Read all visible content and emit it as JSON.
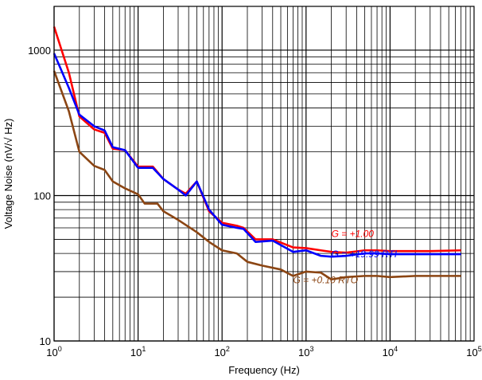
{
  "chart_data": {
    "type": "line",
    "title": "",
    "xlabel": "Frequency (Hz)",
    "ylabel": "Voltage Noise (nV/√ Hz)",
    "x_scale": "log",
    "y_scale": "log",
    "xlim": [
      1,
      100000
    ],
    "ylim": [
      10,
      2000
    ],
    "grid": true,
    "x_ticks": [
      {
        "value": 1,
        "base": "10",
        "exp": "0"
      },
      {
        "value": 10,
        "base": "10",
        "exp": "1"
      },
      {
        "value": 100,
        "base": "10",
        "exp": "2"
      },
      {
        "value": 1000,
        "base": "10",
        "exp": "3"
      },
      {
        "value": 10000,
        "base": "10",
        "exp": "4"
      },
      {
        "value": 100000,
        "base": "10",
        "exp": "5"
      }
    ],
    "y_ticks": [
      {
        "value": 10,
        "label": "10"
      },
      {
        "value": 100,
        "label": "100"
      },
      {
        "value": 1000,
        "label": "1000"
      }
    ],
    "series": [
      {
        "name": "G = +1.00",
        "color": "#ff0000",
        "label_at": [
          2000,
          52
        ],
        "points": [
          [
            1,
            1450
          ],
          [
            1.5,
            700
          ],
          [
            2,
            350
          ],
          [
            3,
            285
          ],
          [
            4,
            270
          ],
          [
            5,
            210
          ],
          [
            7,
            205
          ],
          [
            10,
            158
          ],
          [
            15,
            158
          ],
          [
            20,
            130
          ],
          [
            30,
            110
          ],
          [
            37,
            103
          ],
          [
            50,
            125
          ],
          [
            70,
            78
          ],
          [
            100,
            65
          ],
          [
            150,
            62
          ],
          [
            180,
            60
          ],
          [
            250,
            50
          ],
          [
            400,
            50
          ],
          [
            700,
            44
          ],
          [
            1000,
            43.5
          ],
          [
            1500,
            42
          ],
          [
            2000,
            41
          ],
          [
            3000,
            40.5
          ],
          [
            5000,
            42
          ],
          [
            7000,
            42
          ],
          [
            10000,
            41.5
          ],
          [
            20000,
            41.5
          ],
          [
            30000,
            41.5
          ],
          [
            70000,
            42
          ]
        ]
      },
      {
        "name": "G = +19.99 RTI",
        "color": "#0000ff",
        "label_at": [
          2000,
          37.5
        ],
        "points": [
          [
            1,
            950
          ],
          [
            1.5,
            550
          ],
          [
            2,
            360
          ],
          [
            3,
            300
          ],
          [
            4,
            280
          ],
          [
            5,
            215
          ],
          [
            7,
            205
          ],
          [
            10,
            155
          ],
          [
            15,
            155
          ],
          [
            20,
            130
          ],
          [
            30,
            110
          ],
          [
            37,
            100
          ],
          [
            50,
            125
          ],
          [
            70,
            80
          ],
          [
            100,
            63
          ],
          [
            150,
            60
          ],
          [
            180,
            59
          ],
          [
            250,
            48
          ],
          [
            400,
            49
          ],
          [
            700,
            41
          ],
          [
            1000,
            42
          ],
          [
            1500,
            38.5
          ],
          [
            2000,
            38
          ],
          [
            3000,
            38.5
          ],
          [
            5000,
            40
          ],
          [
            7000,
            40
          ],
          [
            10000,
            39.5
          ],
          [
            20000,
            39.5
          ],
          [
            30000,
            39.5
          ],
          [
            70000,
            39.5
          ]
        ]
      },
      {
        "name": "G = +0.10 RTO",
        "color": "#8b4513",
        "label_at": [
          700,
          25
        ],
        "points": [
          [
            1,
            720
          ],
          [
            1.5,
            380
          ],
          [
            2,
            200
          ],
          [
            3,
            160
          ],
          [
            4,
            150
          ],
          [
            5,
            125
          ],
          [
            7,
            112
          ],
          [
            10,
            102
          ],
          [
            12,
            88
          ],
          [
            17,
            88
          ],
          [
            20,
            78
          ],
          [
            30,
            68
          ],
          [
            50,
            56
          ],
          [
            70,
            48
          ],
          [
            100,
            42
          ],
          [
            150,
            40
          ],
          [
            200,
            35
          ],
          [
            300,
            33
          ],
          [
            500,
            31
          ],
          [
            700,
            28
          ],
          [
            1000,
            30
          ],
          [
            1500,
            29.5
          ],
          [
            2000,
            26.5
          ],
          [
            3000,
            27.5
          ],
          [
            5000,
            28
          ],
          [
            7000,
            28
          ],
          [
            10000,
            27.5
          ],
          [
            20000,
            28
          ],
          [
            30000,
            28
          ],
          [
            70000,
            28
          ]
        ]
      }
    ]
  }
}
